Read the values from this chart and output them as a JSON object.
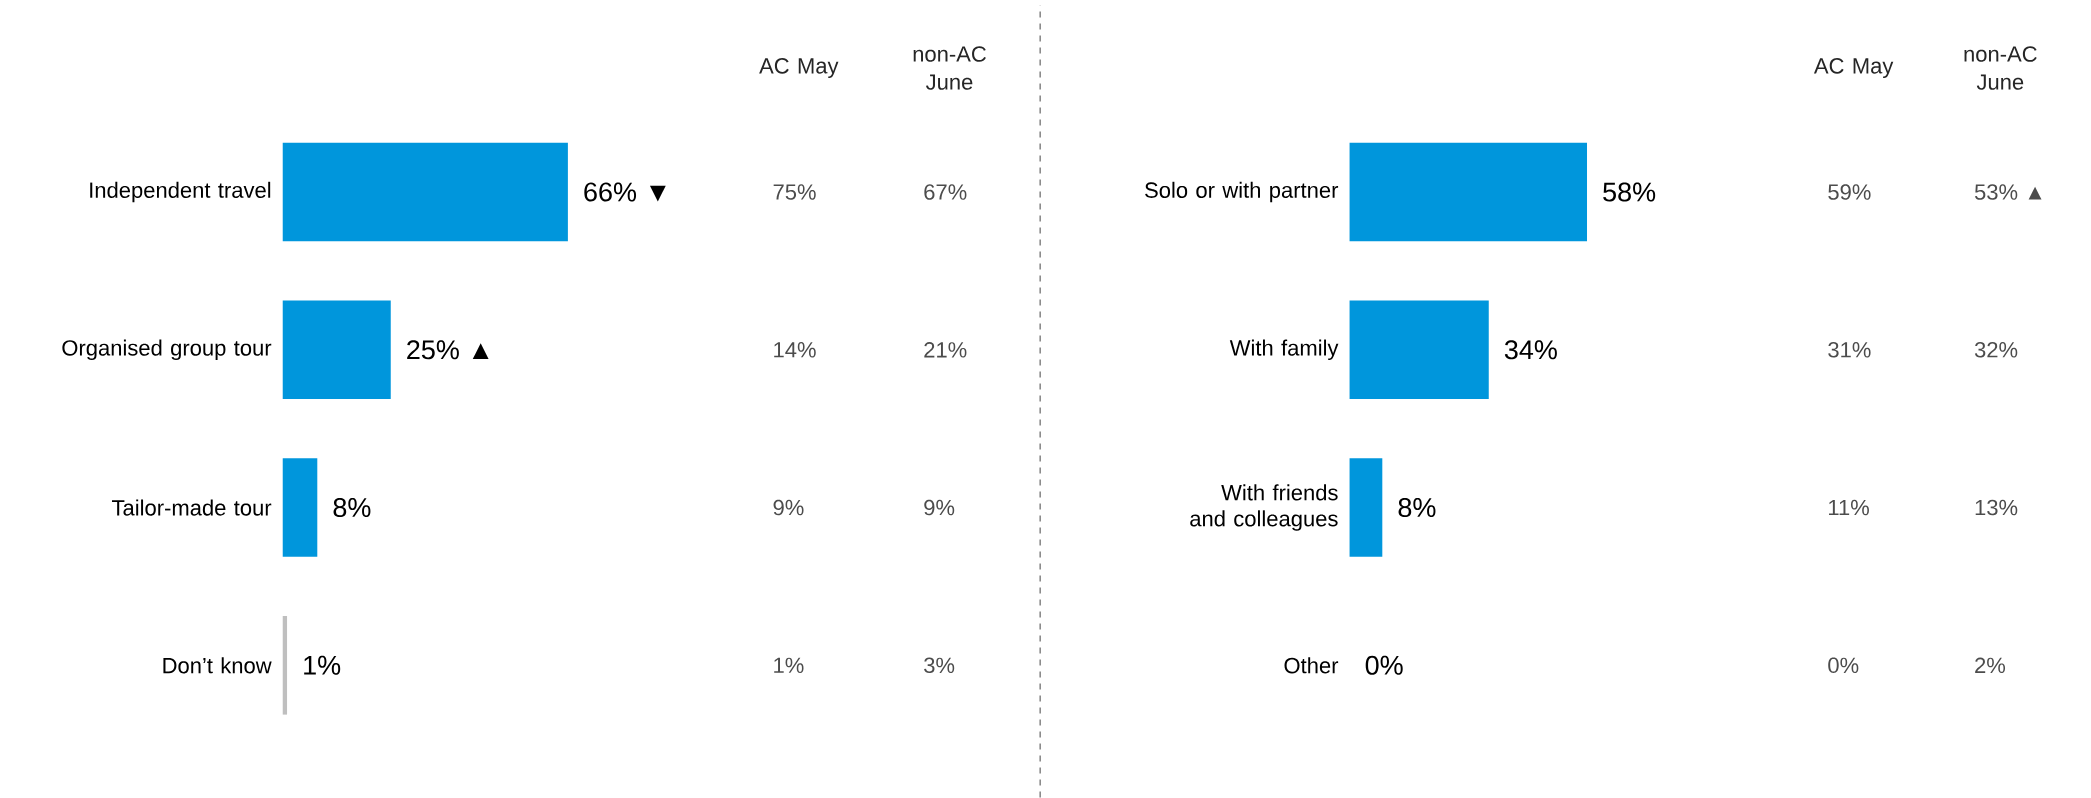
{
  "chart_data": [
    {
      "type": "bar",
      "orientation": "horizontal",
      "categories": [
        "Independent travel",
        "Organised group tour",
        "Tailor-made tour",
        "Don’t know"
      ],
      "series": [
        {
          "values": [
            66,
            25,
            8,
            1
          ],
          "colors": [
            "#0096dc",
            "#0096dc",
            "#0096dc",
            "#bfbfbf"
          ],
          "value_labels": [
            "66% ▼",
            "25% ▲",
            "8%",
            "1%"
          ]
        }
      ],
      "annotations": [
        "AC May",
        "non-AC June",
        "75%",
        "67%",
        "14%",
        "21%",
        "9%",
        "9%",
        "1%",
        "3%"
      ]
    },
    {
      "type": "bar",
      "orientation": "horizontal",
      "categories": [
        "Solo or with partner",
        "With family",
        "With friends and colleagues",
        "Other"
      ],
      "series": [
        {
          "values": [
            58,
            34,
            8,
            0
          ],
          "colors": [
            "#0096dc",
            "#0096dc",
            "#0096dc",
            "#0096dc"
          ],
          "value_labels": [
            "58%",
            "34%",
            "8%",
            "0%"
          ]
        }
      ],
      "annotations": [
        "AC May",
        "non-AC June",
        "59%",
        "53% ▲",
        "31%",
        "32%",
        "11%",
        "13%",
        "0%",
        "2%"
      ]
    }
  ]
}
